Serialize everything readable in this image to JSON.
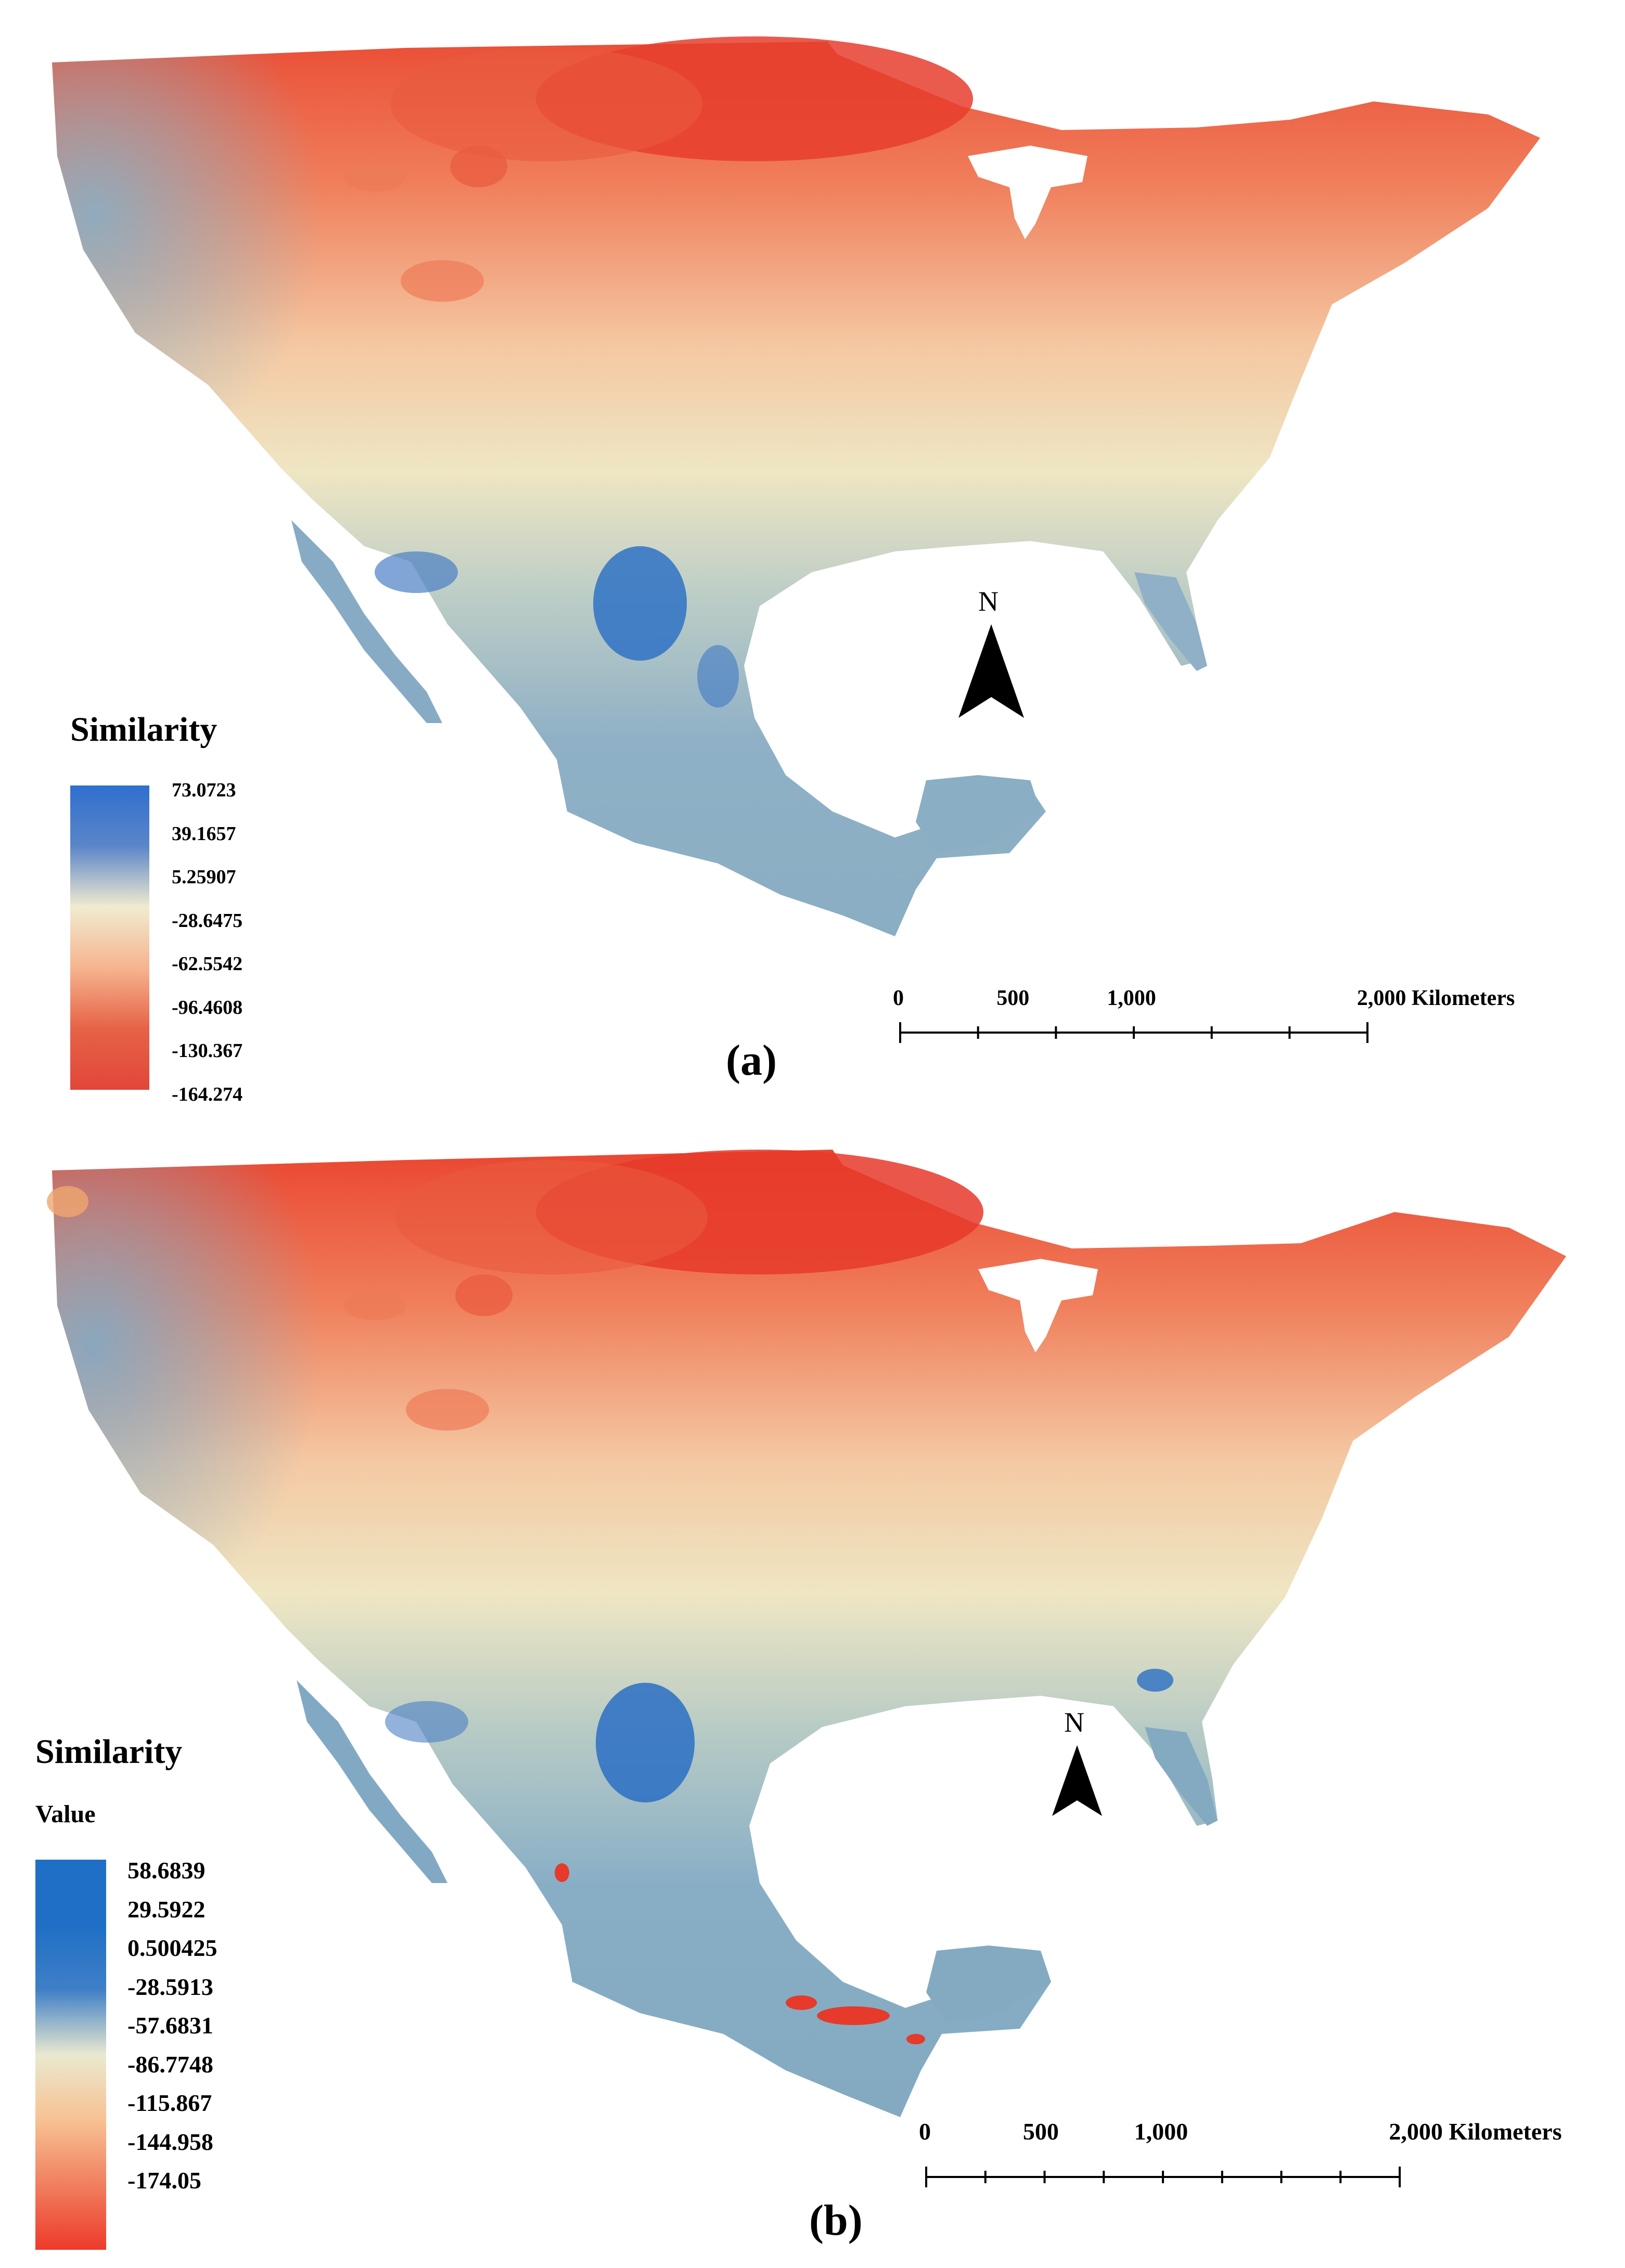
{
  "panels": [
    {
      "id": "a",
      "panel_label": "(a)",
      "legend_title": "Similarity",
      "legend_subtitle": "",
      "legend_values": [
        "73.0723",
        "39.1657",
        "5.25907",
        "-28.6475",
        "-62.5542",
        "-96.4608",
        "-130.367",
        "-164.274"
      ],
      "north_label": "N",
      "scale_labels": [
        "0",
        "500",
        "1,000",
        "2,000 Kilometers"
      ],
      "ramp_colors": [
        "#2f6fce",
        "#5b86c9",
        "#f1ebcf",
        "#f5b48f",
        "#e66247",
        "#e2463a"
      ]
    },
    {
      "id": "b",
      "panel_label": "(b)",
      "legend_title": "Similarity",
      "legend_subtitle": "Value",
      "legend_values": [
        "58.6839",
        "29.5922",
        "0.500425",
        "-28.5913",
        "-57.6831",
        "-86.7748",
        "-115.867",
        "-144.958",
        "-174.05"
      ],
      "north_label": "N",
      "scale_labels": [
        "0",
        "500",
        "1,000",
        "2,000 Kilometers"
      ],
      "ramp_colors": [
        "#1f6fc6",
        "#1f6fc6",
        "#3f7fc7",
        "#e9e9cf",
        "#f7c293",
        "#f07f5f",
        "#ee3a2a"
      ]
    }
  ],
  "map_colors": {
    "north": "#ea4f37",
    "northeast": "#f09b72",
    "middle": "#efe6c3",
    "south": "#8fb0c6",
    "west": "#8eb4c6",
    "blue_core": "#2f72c4",
    "water": "#ffffff"
  }
}
